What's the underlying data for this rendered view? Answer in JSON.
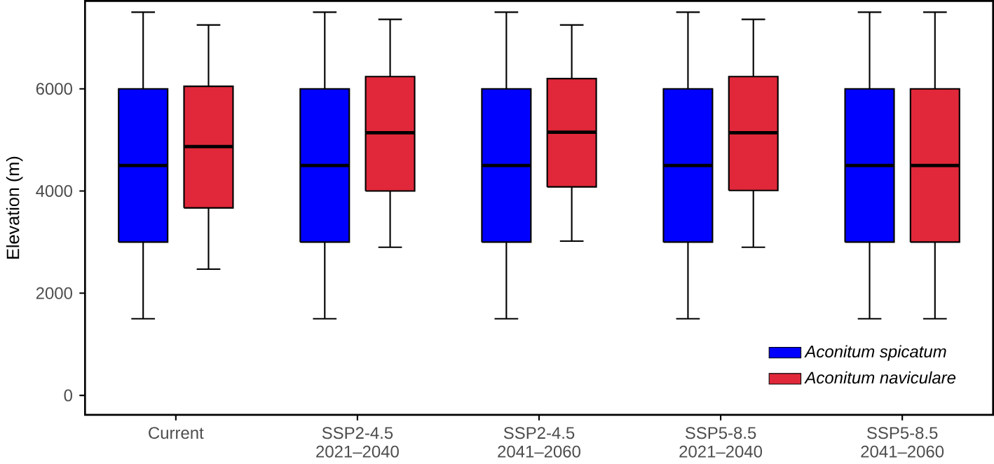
{
  "chart_data": {
    "type": "box",
    "ylabel": "Elevation (m)",
    "categories": [
      "Current",
      "SSP2-4.5 2021–2040",
      "SSP2-4.5 2041–2060",
      "SSP5-8.5 2021–2040",
      "SSP5-8.5 2041–2060"
    ],
    "series": [
      {
        "name": "Aconitum spicatum",
        "color": "#0000ff",
        "boxes": [
          {
            "low": 1500,
            "q1": 3000,
            "median": 4500,
            "q3": 6000,
            "high": 7500
          },
          {
            "low": 1500,
            "q1": 3000,
            "median": 4500,
            "q3": 6000,
            "high": 7500
          },
          {
            "low": 1500,
            "q1": 3000,
            "median": 4500,
            "q3": 6000,
            "high": 7500
          },
          {
            "low": 1500,
            "q1": 3000,
            "median": 4500,
            "q3": 6000,
            "high": 7500
          },
          {
            "low": 1500,
            "q1": 3000,
            "median": 4500,
            "q3": 6000,
            "high": 7500
          }
        ]
      },
      {
        "name": "Aconitum naviculare",
        "color": "#e0283a",
        "boxes": [
          {
            "low": 2470,
            "q1": 3670,
            "median": 4870,
            "q3": 6050,
            "high": 7250
          },
          {
            "low": 2900,
            "q1": 4000,
            "median": 5140,
            "q3": 6240,
            "high": 7360
          },
          {
            "low": 3020,
            "q1": 4080,
            "median": 5150,
            "q3": 6200,
            "high": 7250
          },
          {
            "low": 2900,
            "q1": 4010,
            "median": 5140,
            "q3": 6240,
            "high": 7360
          },
          {
            "low": 1500,
            "q1": 3000,
            "median": 4500,
            "q3": 6000,
            "high": 7500
          }
        ]
      }
    ],
    "ylim": [
      -380,
      7720
    ],
    "yticks": [
      0,
      2000,
      4000,
      6000
    ],
    "grid": false,
    "legend": "bottom right"
  }
}
